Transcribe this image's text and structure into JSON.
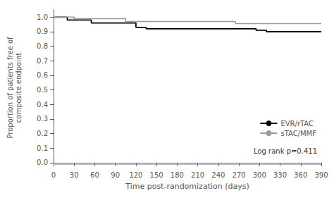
{
  "chart_data": {
    "type": "line",
    "line_style": "step",
    "xlabel": "Time post-randomization (days)",
    "ylabel": "Proportion of patients free of\ncomposite endpoint",
    "xlim": [
      0,
      390
    ],
    "ylim": [
      -0.02,
      1.05
    ],
    "xticks": [
      0,
      30,
      60,
      90,
      120,
      150,
      180,
      210,
      240,
      270,
      300,
      330,
      360,
      390
    ],
    "yticks": [
      {
        "value": 0.0,
        "label": "0.0"
      },
      0.1,
      0.2,
      0.3,
      0.4,
      0.5,
      0.6,
      0.7,
      0.8,
      0.9,
      {
        "value": 1.0,
        "label": "1.0"
      }
    ],
    "series": [
      {
        "name": "EVR/rTAC",
        "color": "#000000",
        "x": [
          0,
          20,
          55,
          120,
          135,
          295,
          310,
          390
        ],
        "values": [
          1.0,
          0.98,
          0.96,
          0.93,
          0.92,
          0.91,
          0.9,
          0.9
        ]
      },
      {
        "name": "sTAC/MMF",
        "color": "#999999",
        "x": [
          0,
          30,
          105,
          265,
          390
        ],
        "values": [
          1.0,
          0.99,
          0.97,
          0.955,
          0.955
        ]
      }
    ],
    "reference_lines": [
      {
        "y": -0.01,
        "color": "#aaaaaa"
      }
    ],
    "annotation": "Log rank p=0.411",
    "legend": "lower right",
    "grid": false
  }
}
